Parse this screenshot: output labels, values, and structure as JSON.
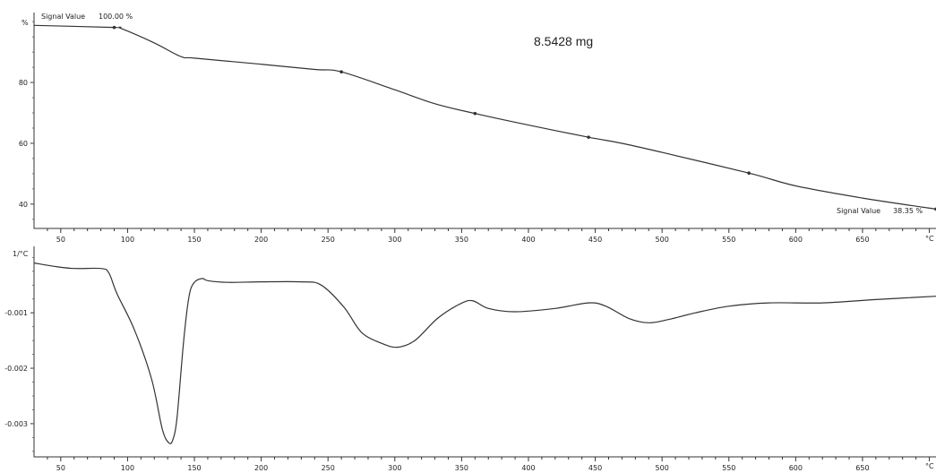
{
  "chart_data": [
    {
      "type": "line",
      "title": "",
      "xlabel": "°C",
      "ylabel": "%",
      "xlim": [
        30,
        705
      ],
      "ylim": [
        32,
        103
      ],
      "xticks": [
        50,
        100,
        150,
        200,
        250,
        300,
        350,
        400,
        450,
        500,
        550,
        600,
        650
      ],
      "yticks": [
        40,
        60,
        80
      ],
      "grid": false,
      "annotations": {
        "start_label": "Signal Value",
        "start_value": "100.00 %",
        "sample_mass": "8.5428 mg",
        "end_label": "Signal Value",
        "end_value": "38.35 %"
      },
      "series": [
        {
          "x": [
            30,
            90,
            95,
            120,
            140,
            150,
            200,
            240,
            260,
            300,
            330,
            360,
            400,
            445,
            470,
            500,
            565,
            600,
            650,
            705
          ],
          "y": [
            98.8,
            98.1,
            97.8,
            93,
            88.5,
            88,
            86,
            84.3,
            83.5,
            77.6,
            73,
            69.8,
            66,
            62,
            60,
            57,
            50.2,
            46,
            42,
            38.35
          ]
        }
      ]
    },
    {
      "type": "line",
      "title": "",
      "xlabel": "°C",
      "ylabel": "1/°C",
      "xlim": [
        30,
        705
      ],
      "ylim": [
        -0.0036,
        0.0002
      ],
      "xticks": [
        50,
        100,
        150,
        200,
        250,
        300,
        350,
        400,
        450,
        500,
        550,
        600,
        650
      ],
      "yticks": [
        -0.001,
        -0.002,
        -0.003
      ],
      "yticklabels": [
        "-0.001",
        "-0.002",
        "-0.003"
      ],
      "grid": false,
      "series": [
        {
          "x": [
            30,
            45,
            60,
            80,
            86,
            92,
            105,
            118,
            126,
            131,
            134,
            137,
            142,
            146,
            150,
            156,
            160,
            175,
            200,
            230,
            245,
            262,
            275,
            290,
            302,
            315,
            332,
            348,
            358,
            370,
            390,
            420,
            445,
            458,
            475,
            490,
            505,
            525,
            550,
            580,
            620,
            660,
            705
          ],
          "y": [
            -0.0001,
            -0.00016,
            -0.0002,
            -0.0002,
            -0.00028,
            -0.00065,
            -0.0013,
            -0.0022,
            -0.0031,
            -0.00335,
            -0.00328,
            -0.0029,
            -0.0015,
            -0.0007,
            -0.00045,
            -0.00038,
            -0.00042,
            -0.00045,
            -0.00044,
            -0.00044,
            -0.0005,
            -0.0009,
            -0.00135,
            -0.00155,
            -0.00162,
            -0.0015,
            -0.0011,
            -0.00085,
            -0.00078,
            -0.00092,
            -0.00098,
            -0.00092,
            -0.00082,
            -0.00088,
            -0.0011,
            -0.00118,
            -0.00112,
            -0.001,
            -0.00088,
            -0.00082,
            -0.00082,
            -0.00076,
            -0.0007
          ]
        }
      ]
    }
  ]
}
